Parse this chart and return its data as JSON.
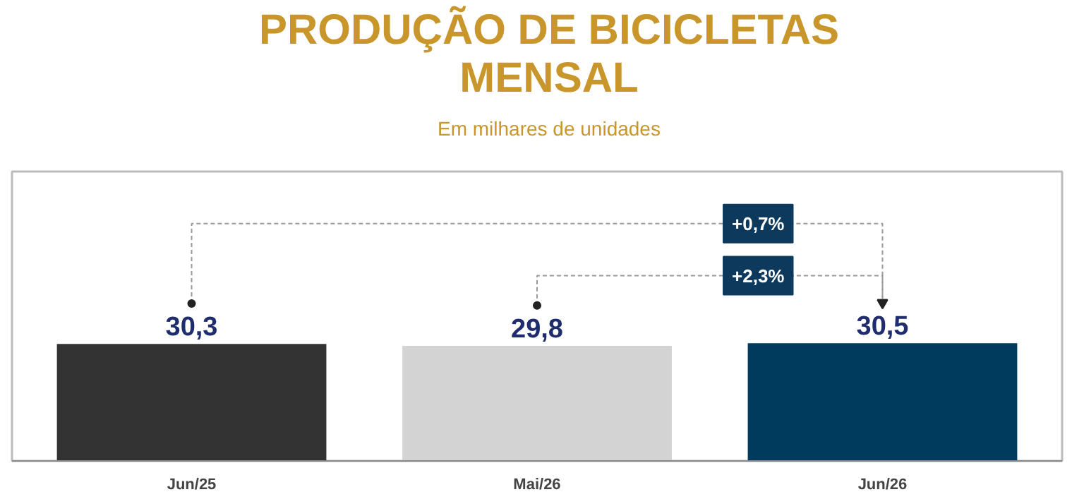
{
  "chart_data": {
    "type": "bar",
    "title": "PRODUÇÃO DE BICICLETAS MENSAL",
    "subtitle": "Em milhares de unidades",
    "categories": [
      "Jun/25",
      "Mai/26",
      "Jun/26"
    ],
    "values": [
      30.3,
      29.8,
      30.5
    ],
    "colors": [
      "#333333",
      "#d3d3d3",
      "#003a5c"
    ],
    "ylim": [
      0,
      75
    ],
    "value_labels": [
      "30,3",
      "29,8",
      "30,5"
    ],
    "annotations": [
      "+0,7%",
      "+2,3%"
    ],
    "grid": false
  }
}
